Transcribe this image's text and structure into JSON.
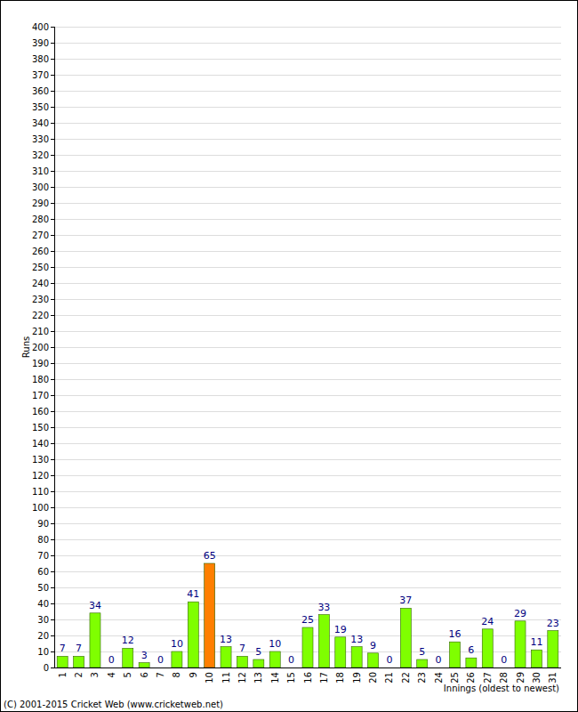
{
  "chart_data": {
    "type": "bar",
    "y_label": "Runs",
    "x_label": "Innings (oldest to newest)",
    "annotations": [
      "(C) 2001-2015 Cricket Web (www.cricketweb.net)"
    ],
    "categories": [
      "1",
      "2",
      "3",
      "4",
      "5",
      "6",
      "7",
      "8",
      "9",
      "10",
      "11",
      "12",
      "13",
      "14",
      "15",
      "16",
      "17",
      "18",
      "19",
      "20",
      "21",
      "22",
      "23",
      "24",
      "25",
      "26",
      "27",
      "28",
      "29",
      "30",
      "31"
    ],
    "values": [
      7,
      7,
      34,
      0,
      12,
      3,
      0,
      10,
      41,
      65,
      13,
      7,
      5,
      10,
      0,
      25,
      33,
      19,
      13,
      9,
      0,
      37,
      5,
      0,
      16,
      6,
      24,
      0,
      29,
      11,
      23
    ],
    "colors": [
      "#7fff00",
      "#7fff00",
      "#7fff00",
      "#7fff00",
      "#7fff00",
      "#7fff00",
      "#7fff00",
      "#7fff00",
      "#7fff00",
      "#ff7f00",
      "#7fff00",
      "#7fff00",
      "#7fff00",
      "#7fff00",
      "#7fff00",
      "#7fff00",
      "#7fff00",
      "#7fff00",
      "#7fff00",
      "#7fff00",
      "#7fff00",
      "#7fff00",
      "#7fff00",
      "#7fff00",
      "#7fff00",
      "#7fff00",
      "#7fff00",
      "#7fff00",
      "#7fff00",
      "#7fff00",
      "#7fff00"
    ],
    "ylim": [
      0,
      400
    ],
    "yticks": [
      0,
      10,
      20,
      30,
      40,
      50,
      60,
      70,
      80,
      90,
      100,
      110,
      120,
      130,
      140,
      150,
      160,
      170,
      180,
      190,
      200,
      210,
      220,
      230,
      240,
      250,
      260,
      270,
      280,
      290,
      300,
      310,
      320,
      330,
      340,
      350,
      360,
      370,
      380,
      390,
      400
    ],
    "grid": true,
    "data_labels": true
  }
}
